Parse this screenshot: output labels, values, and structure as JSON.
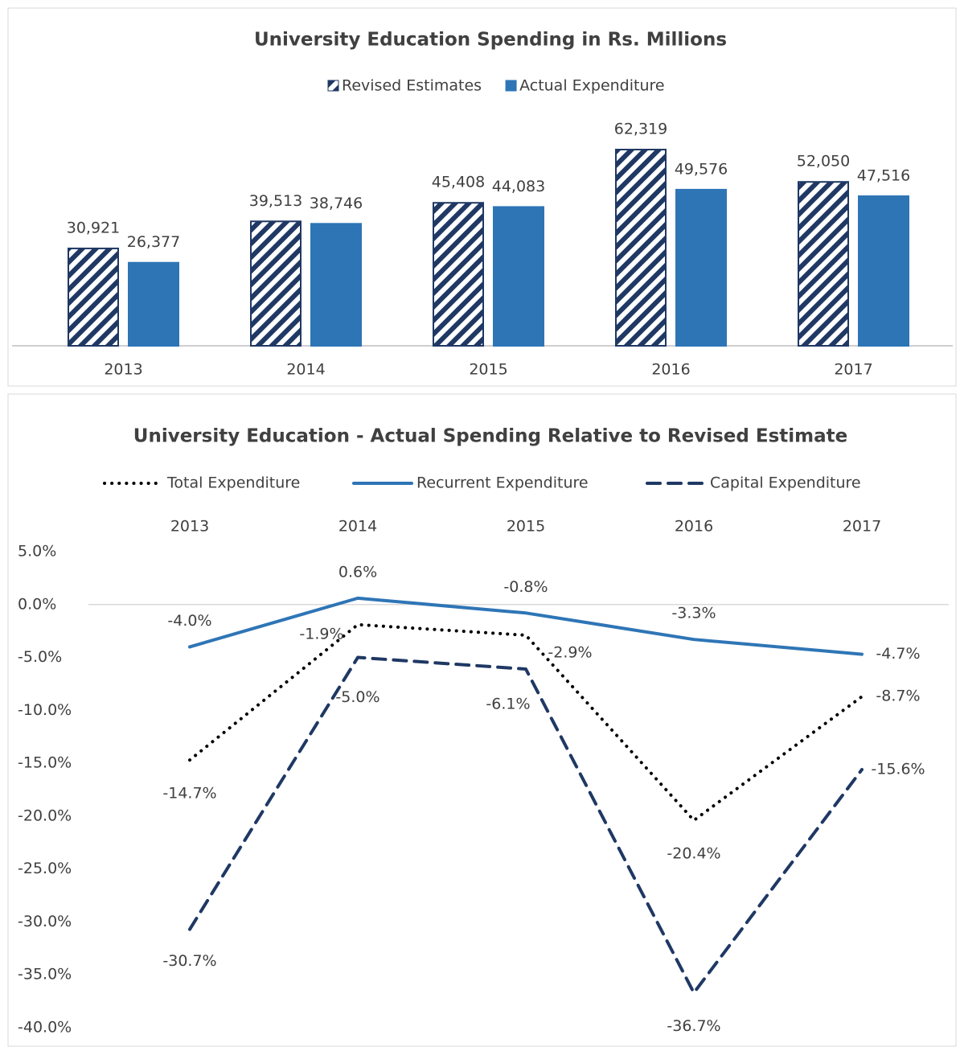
{
  "chart_data": [
    {
      "type": "bar",
      "title": "University Education Spending in Rs. Millions",
      "categories": [
        "2013",
        "2014",
        "2015",
        "2016",
        "2017"
      ],
      "series": [
        {
          "name": "Revised Estimates",
          "color": "#1f3864",
          "pattern": "hatch",
          "values": [
            30921,
            39513,
            45408,
            62319,
            52050
          ],
          "value_labels": [
            "30,921",
            "39,513",
            "45,408",
            "62,319",
            "52,050"
          ]
        },
        {
          "name": "Actual Expenditure",
          "color": "#2e75b6",
          "values": [
            26377,
            38746,
            44083,
            49576,
            47516
          ],
          "value_labels": [
            "26,377",
            "38,746",
            "44,083",
            "49,576",
            "47,516"
          ]
        }
      ],
      "legend": "top"
    },
    {
      "type": "line",
      "title": "University Education - Actual Spending Relative to Revised Estimate",
      "categories": [
        "2013",
        "2014",
        "2015",
        "2016",
        "2017"
      ],
      "series": [
        {
          "name": "Total Expenditure",
          "color": "#000000",
          "style": "dotted",
          "values": [
            -14.7,
            -1.9,
            -2.9,
            -20.4,
            -8.7
          ],
          "value_labels": [
            "-14.7%",
            "-1.9%",
            "-2.9%",
            "-20.4%",
            "-8.7%"
          ]
        },
        {
          "name": "Recurrent Expenditure",
          "color": "#2e75b6",
          "style": "solid",
          "values": [
            -4.0,
            0.6,
            -0.8,
            -3.3,
            -4.7
          ],
          "value_labels": [
            "-4.0%",
            "0.6%",
            "-0.8%",
            "-3.3%",
            "-4.7%"
          ]
        },
        {
          "name": "Capital Expenditure",
          "color": "#1f3864",
          "style": "dashed",
          "values": [
            -30.7,
            -5.0,
            -6.1,
            -36.7,
            -15.6
          ],
          "value_labels": [
            "-30.7%",
            "-5.0%",
            "-6.1%",
            "-36.7%",
            "-15.6%"
          ]
        }
      ],
      "ylim": [
        -40,
        5
      ],
      "yticks": [
        {
          "value": 5,
          "label": "5.0%"
        },
        {
          "value": 0,
          "label": "0.0%"
        },
        {
          "value": -5,
          "label": "-5.0%"
        },
        {
          "value": -10,
          "label": "-10.0%"
        },
        {
          "value": -15,
          "label": "-15.0%"
        },
        {
          "value": -20,
          "label": "-20.0%"
        },
        {
          "value": -25,
          "label": "-25.0%"
        },
        {
          "value": -30,
          "label": "-30.0%"
        },
        {
          "value": -35,
          "label": "-35.0%"
        },
        {
          "value": -40,
          "label": "-40.0%"
        }
      ],
      "grid": false,
      "legend": "top"
    }
  ]
}
